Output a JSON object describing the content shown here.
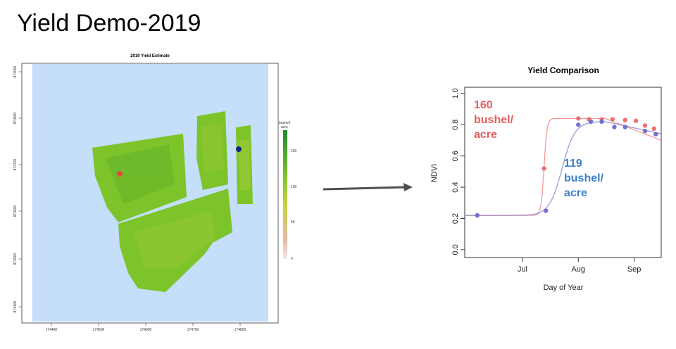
{
  "slide": {
    "title": "Yield Demo-2019"
  },
  "map": {
    "title": "2019 Yield Estimate",
    "x_ticks": [
      "174400",
      "174500",
      "174600",
      "174700",
      "174800"
    ],
    "y_ticks": [
      "874800",
      "874700",
      "874600",
      "874500",
      "874400"
    ],
    "y_top_tick": "874900",
    "legend_title_line1": "bushel/",
    "legend_title_line2": "acre",
    "legend_ticks": [
      "150",
      "100",
      "50",
      "0"
    ],
    "background_color": "#c5defa",
    "field_color": "#7cc42a",
    "markers": [
      {
        "color": "#e8453c"
      },
      {
        "color": "#1a237e"
      }
    ]
  },
  "chart_data": {
    "type": "scatter",
    "title": "Yield Comparison",
    "xlabel": "Day of Year",
    "ylabel": "NDVI",
    "xtick_labels": [
      "Jul",
      "Aug",
      "Sep"
    ],
    "ytick_labels": [
      "0.0",
      "0.2",
      "0.4",
      "0.6",
      "0.8",
      "1.0"
    ],
    "ylim": [
      0,
      1.0
    ],
    "grid": false,
    "series": [
      {
        "color": "#f07070",
        "x": [
          157,
          194,
          213,
          219,
          226,
          232,
          239,
          245,
          250,
          255
        ],
        "y": [
          0.22,
          0.52,
          0.84,
          0.835,
          0.835,
          0.835,
          0.83,
          0.825,
          0.795,
          0.775
        ],
        "annotation": [
          "160",
          "bushel/",
          "acre"
        ]
      },
      {
        "color": "#7272cc",
        "x": [
          157,
          195,
          213,
          220,
          226,
          233,
          239,
          250,
          256
        ],
        "y": [
          0.22,
          0.25,
          0.8,
          0.82,
          0.82,
          0.785,
          0.785,
          0.76,
          0.74
        ],
        "annotation": [
          "119",
          "bushel/",
          "acre"
        ]
      }
    ],
    "annotation_colors": [
      "#e35d5d",
      "#3d80c8"
    ]
  },
  "arrow": {
    "color": "#505050"
  }
}
